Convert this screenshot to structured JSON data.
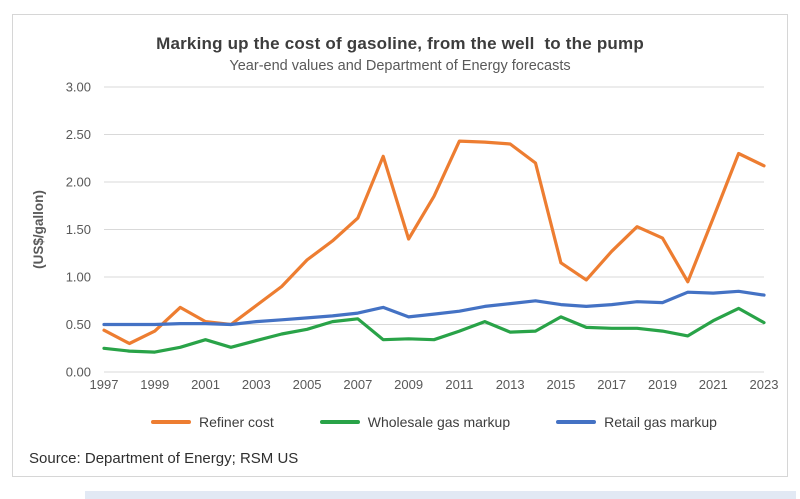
{
  "chart_data": {
    "type": "line",
    "title": "Marking up the cost of gasoline, from the well  to the pump",
    "subtitle": "Year-end values and Department of Energy forecasts",
    "ylabel": "(US$/gallon)",
    "ylim": [
      0.0,
      3.0
    ],
    "y_tick_labels": [
      "0.00",
      "0.50",
      "1.00",
      "1.50",
      "2.00",
      "2.50",
      "3.00"
    ],
    "grid": "horizontal",
    "legend_position": "bottom",
    "x": [
      1997,
      1998,
      1999,
      2000,
      2001,
      2002,
      2003,
      2004,
      2005,
      2006,
      2007,
      2008,
      2009,
      2010,
      2011,
      2012,
      2013,
      2014,
      2015,
      2016,
      2017,
      2018,
      2019,
      2020,
      2021,
      2022,
      2023
    ],
    "x_tick_labels": [
      "1997",
      "1999",
      "2001",
      "2003",
      "2005",
      "2007",
      "2009",
      "2011",
      "2013",
      "2015",
      "2017",
      "2019",
      "2021",
      "2023"
    ],
    "series": [
      {
        "name": "Refiner cost",
        "color": "#ED7D31",
        "values": [
          0.44,
          0.3,
          0.43,
          0.68,
          0.53,
          0.5,
          0.7,
          0.9,
          1.18,
          1.38,
          1.62,
          2.27,
          1.4,
          1.85,
          2.43,
          2.42,
          2.4,
          2.2,
          1.15,
          0.97,
          1.27,
          1.53,
          1.41,
          0.95,
          1.62,
          2.3,
          2.17
        ]
      },
      {
        "name": "Wholesale gas markup",
        "color": "#29A348",
        "values": [
          0.25,
          0.22,
          0.21,
          0.26,
          0.34,
          0.26,
          0.33,
          0.4,
          0.45,
          0.53,
          0.56,
          0.34,
          0.35,
          0.34,
          0.43,
          0.53,
          0.42,
          0.43,
          0.58,
          0.47,
          0.46,
          0.46,
          0.43,
          0.38,
          0.54,
          0.67,
          0.52
        ]
      },
      {
        "name": "Retail gas markup",
        "color": "#4472C4",
        "values": [
          0.5,
          0.5,
          0.5,
          0.51,
          0.51,
          0.5,
          0.53,
          0.55,
          0.57,
          0.59,
          0.62,
          0.68,
          0.58,
          0.61,
          0.64,
          0.69,
          0.72,
          0.75,
          0.71,
          0.69,
          0.71,
          0.74,
          0.73,
          0.84,
          0.83,
          0.85,
          0.81
        ]
      }
    ]
  },
  "source": {
    "text": "Source: Department of Energy; RSM US"
  },
  "colors": {
    "gridline": "#D9D9D9",
    "axis_text": "#595959",
    "title_text": "#3D3D3D",
    "card_border": "#D6D6D6",
    "bottom_bar": "#E2E9F4"
  }
}
